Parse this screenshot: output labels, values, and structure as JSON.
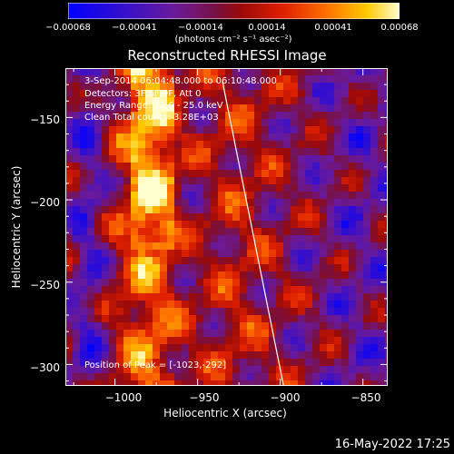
{
  "chart_data": {
    "type": "heatmap",
    "title": "Reconstructed RHESSI Image",
    "xlabel": "Heliocentric X (arcsec)",
    "ylabel": "Heliocentric Y (arcsec)",
    "xlim": [
      -1030,
      -835
    ],
    "ylim": [
      -313,
      -120
    ],
    "xticks": [
      -1000,
      -950,
      -900,
      -850
    ],
    "xtick_labels": [
      "−1000",
      "−950",
      "−900",
      "−850"
    ],
    "yticks": [
      -150,
      -200,
      -250,
      -300
    ],
    "ytick_labels": [
      "−150",
      "−200",
      "−250",
      "−300"
    ],
    "limb_line": [
      [
        -935,
        -128
      ],
      [
        -898,
        -313
      ]
    ],
    "colorbar": {
      "range": [
        -0.00068,
        0.00068
      ],
      "tick_values": [
        -0.00068,
        -0.00041,
        -0.00014,
        0.00014,
        0.00041,
        0.00068
      ],
      "tick_labels": [
        "−0.00068",
        "−0.00041",
        "−0.00014",
        "0.00014",
        "0.00041",
        "0.00068"
      ],
      "units": "(photons cm⁻² s⁻¹ asec⁻²)"
    },
    "annotations": [
      "3-Sep-2014 06:04:48.000 to 06:10:48.000",
      "Detectors: 3F 6F 9F, Att 0",
      "Energy Range: 12.0 - 25.0 keV",
      "Clean     Total counts: 3.28E+03"
    ],
    "peak_label": "Position of Peak = [-1023,-292]",
    "grid": false
  },
  "footer": {
    "timestamp": "16-May-2022 17:25"
  }
}
